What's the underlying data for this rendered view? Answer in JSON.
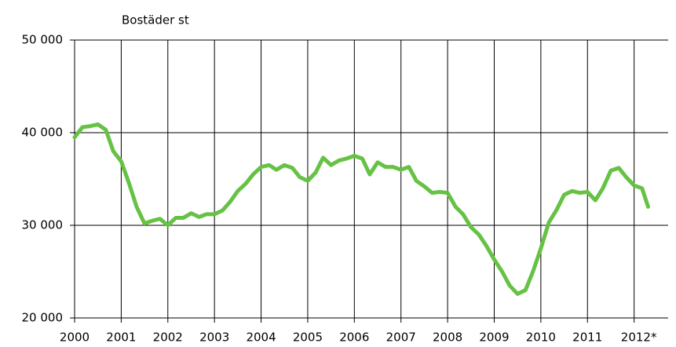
{
  "chart_data": {
    "type": "line",
    "y_axis_label": "Bostäder st",
    "x": [
      2000,
      2000.17,
      2000.33,
      2000.5,
      2000.67,
      2000.83,
      2001,
      2001.17,
      2001.33,
      2001.5,
      2001.67,
      2001.83,
      2002,
      2002.17,
      2002.33,
      2002.5,
      2002.67,
      2002.83,
      2003,
      2003.17,
      2003.33,
      2003.5,
      2003.67,
      2003.83,
      2004,
      2004.17,
      2004.33,
      2004.5,
      2004.67,
      2004.83,
      2005,
      2005.17,
      2005.33,
      2005.5,
      2005.67,
      2005.83,
      2006,
      2006.17,
      2006.33,
      2006.5,
      2006.67,
      2006.83,
      2007,
      2007.17,
      2007.33,
      2007.5,
      2007.67,
      2007.83,
      2008,
      2008.17,
      2008.33,
      2008.5,
      2008.67,
      2008.83,
      2009,
      2009.17,
      2009.33,
      2009.5,
      2009.67,
      2009.83,
      2010,
      2010.17,
      2010.33,
      2010.5,
      2010.67,
      2010.83,
      2011,
      2011.17,
      2011.33,
      2011.5,
      2011.67,
      2011.83,
      2012,
      2012.17,
      2012.3
    ],
    "series": [
      {
        "name": "Bostäder",
        "color": "#66c244",
        "values": [
          39500,
          40600,
          40700,
          40900,
          40300,
          38000,
          36900,
          34500,
          32000,
          30200,
          30500,
          30700,
          30000,
          30800,
          30800,
          31300,
          30900,
          31200,
          31200,
          31600,
          32500,
          33700,
          34500,
          35500,
          36300,
          36500,
          36000,
          36500,
          36200,
          35200,
          34800,
          35700,
          37300,
          36500,
          37000,
          37200,
          37500,
          37200,
          35500,
          36800,
          36300,
          36300,
          36000,
          36300,
          34800,
          34200,
          33500,
          33600,
          33500,
          32000,
          31200,
          29800,
          29000,
          27800,
          26300,
          25000,
          23500,
          22600,
          23000,
          25000,
          27500,
          30300,
          31600,
          33300,
          33700,
          33500,
          33600,
          32700,
          34000,
          35900,
          36200,
          35200,
          34300,
          34000,
          32000
        ]
      }
    ],
    "xlim": [
      2000,
      2012.73
    ],
    "xticks": [
      2000,
      2001,
      2002,
      2003,
      2004,
      2005,
      2006,
      2007,
      2008,
      2009,
      2010,
      2011,
      {
        "value": 2012,
        "label": "2012*"
      }
    ],
    "ylim": [
      20000,
      50000
    ],
    "yticks": [
      {
        "value": 20000,
        "label": "20 000"
      },
      {
        "value": 30000,
        "label": "30 000"
      },
      {
        "value": 40000,
        "label": "40 000"
      },
      {
        "value": 50000,
        "label": "50 000"
      }
    ],
    "grid": true
  }
}
